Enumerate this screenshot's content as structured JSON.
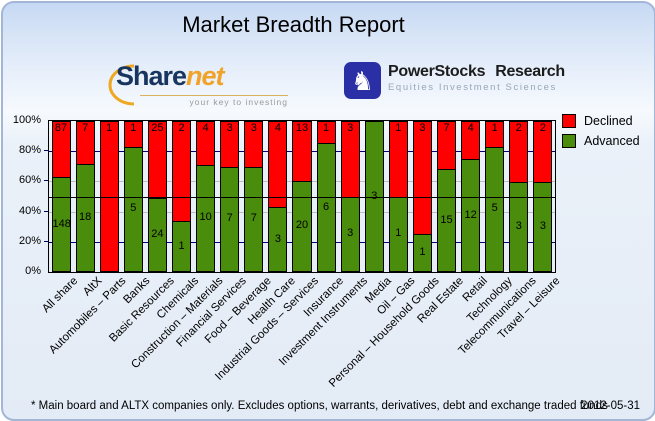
{
  "header": {
    "title": "Market Breadth Report"
  },
  "logos": {
    "sharenet": {
      "name_part1": "Share",
      "name_part2": "net",
      "tagline": "your key to investing"
    },
    "powerstocks": {
      "title_word1": "PowerStocks",
      "title_word2": "Research",
      "subtitle": "Equities Investment Sciences",
      "knight_icon": "♞"
    }
  },
  "chart_data": {
    "type": "bar",
    "stacked": true,
    "normalized_to_percent": true,
    "categories": [
      "All share",
      "AltX",
      "Automobiles – Parts",
      "Banks",
      "Basic Resources",
      "Chemicals",
      "Construction – Materials",
      "Financial Services",
      "Food – Beverage",
      "Health Care",
      "Industrial Goods – Services",
      "Insurance",
      "Investment Instruments",
      "Media",
      "Oil – Gas",
      "Personal – Household Goods",
      "Real Estate",
      "Retail",
      "Technology",
      "Telecommunications",
      "Travel – Leisure"
    ],
    "series": [
      {
        "name": "Declined",
        "color": "#ff0000",
        "values": [
          87,
          7,
          1,
          1,
          25,
          2,
          4,
          3,
          3,
          4,
          13,
          1,
          3,
          0,
          1,
          3,
          7,
          4,
          1,
          2,
          2
        ]
      },
      {
        "name": "Advanced",
        "color": "#4a8c0c",
        "values": [
          148,
          18,
          0,
          5,
          24,
          1,
          10,
          7,
          7,
          3,
          20,
          6,
          3,
          3,
          1,
          1,
          15,
          12,
          5,
          3,
          3
        ]
      }
    ],
    "y_axis": {
      "ticks": [
        "100%",
        "80%",
        "60%",
        "40%",
        "20%",
        "0%"
      ],
      "min": 0,
      "max": 100,
      "unit": "percent of companies"
    },
    "legend_position": "top-right",
    "grid": "horizontal lines at 20/40/60/80, solid midline at 50%"
  },
  "footer": {
    "note": "* Main board and ALTX companies only. Excludes options, warrants, derivatives, debt and exchange traded funds",
    "date": "2012-05-31"
  }
}
